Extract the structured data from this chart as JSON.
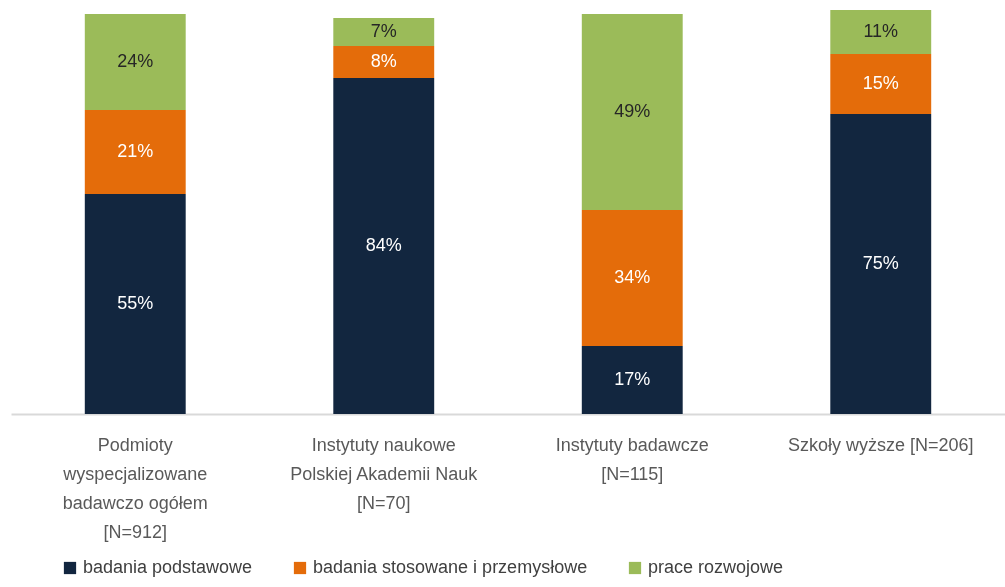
{
  "chart_data": {
    "type": "bar",
    "stacked": true,
    "legend": "bottom",
    "tick_labels": "x",
    "categories": [
      "Podmioty wyspecjalizowane badawczo ogółem [N=912]",
      "Instytuty naukowe Polskiej Akademii Nauk [N=70]",
      "Instytuty badawcze [N=115]",
      "Szkoły wyższe [N=206]"
    ],
    "series": [
      {
        "name": "badania podstawowe",
        "color": "#12263f",
        "values": [
          55,
          84,
          17,
          75
        ],
        "value_labels": [
          "55%",
          "84%",
          "17%",
          "75%"
        ]
      },
      {
        "name": "badania stosowane i przemysłowe",
        "color": "#e46c0a",
        "values": [
          21,
          8,
          34,
          15
        ],
        "value_labels": [
          "21%",
          "8%",
          "34%",
          "15%"
        ]
      },
      {
        "name": "prace rozwojowe",
        "color": "#9bbb59",
        "values": [
          24,
          7,
          49,
          11
        ],
        "value_labels": [
          "24%",
          "7%",
          "49%",
          "11%"
        ]
      }
    ]
  }
}
